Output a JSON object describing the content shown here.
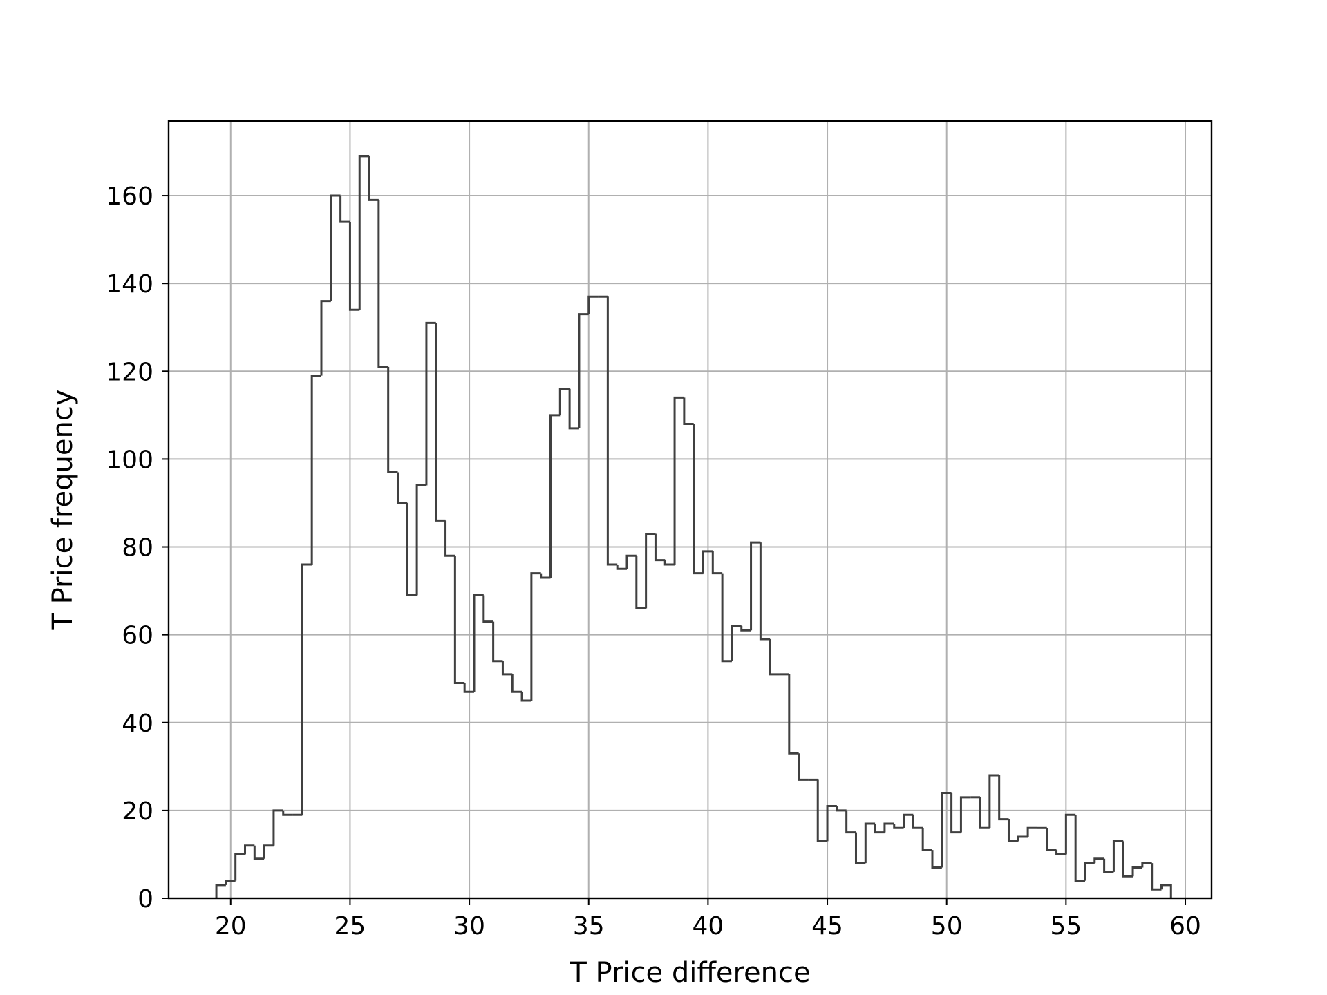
{
  "chart_data": {
    "type": "histogram",
    "title": "",
    "xlabel": "T Price difference",
    "ylabel": "T Price frequency",
    "xlim": [
      17.4,
      61.1
    ],
    "ylim": [
      0,
      177
    ],
    "grid": true,
    "histtype": "step",
    "line_color": "#404040",
    "grid_color": "#b0b0b0",
    "x_ticks": [
      20,
      25,
      30,
      35,
      40,
      45,
      50,
      55,
      60
    ],
    "x_tick_labels": [
      "20",
      "25",
      "30",
      "35",
      "40",
      "45",
      "50",
      "55",
      "60"
    ],
    "y_ticks": [
      0,
      20,
      40,
      60,
      80,
      100,
      120,
      140,
      160
    ],
    "y_tick_labels": [
      "0",
      "20",
      "40",
      "60",
      "80",
      "100",
      "120",
      "140",
      "160"
    ],
    "bin_start": 19.4,
    "bin_width": 0.4,
    "counts": [
      3,
      4,
      10,
      12,
      9,
      12,
      20,
      19,
      19,
      76,
      119,
      136,
      160,
      154,
      134,
      169,
      159,
      121,
      97,
      90,
      69,
      94,
      131,
      86,
      78,
      49,
      47,
      69,
      63,
      54,
      51,
      47,
      45,
      74,
      73,
      110,
      116,
      107,
      133,
      137,
      137,
      76,
      75,
      78,
      66,
      83,
      77,
      76,
      114,
      108,
      74,
      79,
      74,
      54,
      62,
      61,
      81,
      59,
      51,
      51,
      33,
      27,
      27,
      13,
      21,
      20,
      15,
      8,
      17,
      15,
      17,
      16,
      19,
      16,
      11,
      7,
      24,
      15,
      23,
      23,
      16,
      28,
      18,
      13,
      14,
      16,
      16,
      11,
      10,
      19,
      4,
      8,
      9,
      6,
      13,
      5,
      7,
      8,
      2,
      3
    ]
  }
}
